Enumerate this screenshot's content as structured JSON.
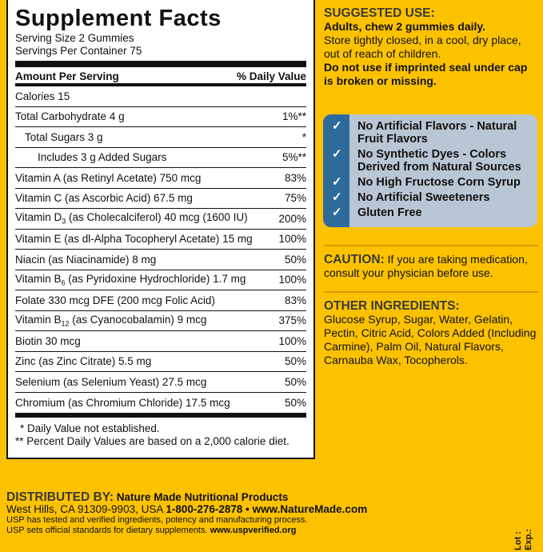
{
  "facts": {
    "title": "Supplement Facts",
    "serving_size": "Serving Size 2 Gummies",
    "servings_per_container": "Servings Per Container 75",
    "header_amount": "Amount Per Serving",
    "header_dv": "% Daily Value",
    "rows": [
      {
        "name": "Calories  15",
        "dv": ""
      },
      {
        "name": "Total Carbohydrate  4 g",
        "dv": "1%**"
      },
      {
        "name": "Total Sugars  3 g",
        "dv": "*"
      },
      {
        "name": "Includes 3 g Added Sugars",
        "dv": "5%**"
      },
      {
        "name": "Vitamin A (as Retinyl Acetate)  750 mcg",
        "dv": "83%"
      },
      {
        "name": "Vitamin C (as Ascorbic Acid)  67.5 mg",
        "dv": "75%"
      },
      {
        "name": "Vitamin D",
        "sub": "3",
        "rest": " (as Cholecalciferol)  40 mcg (1600 IU)",
        "dv": "200%"
      },
      {
        "name": "Vitamin E (as dl-Alpha Tocopheryl Acetate)  15 mg",
        "dv": "100%"
      },
      {
        "name": "Niacin (as Niacinamide)  8 mg",
        "dv": "50%"
      },
      {
        "name": "Vitamin B",
        "sub": "6",
        "rest": " (as Pyridoxine Hydrochloride)  1.7 mg",
        "dv": "100%"
      },
      {
        "name": "Folate  330 mcg DFE (200 mcg Folic Acid)",
        "dv": "83%"
      },
      {
        "name": "Vitamin B",
        "sub": "12",
        "rest": " (as Cyanocobalamin)  9 mcg",
        "dv": "375%"
      },
      {
        "name": "Biotin  30 mcg",
        "dv": "100%"
      },
      {
        "name": "Zinc (as Zinc Citrate)  5.5 mg",
        "dv": "50%"
      },
      {
        "name": "Selenium (as Selenium Yeast)  27.5 mcg",
        "dv": "50%"
      },
      {
        "name": "Chromium (as Chromium Chloride)  17.5 mcg",
        "dv": "50%"
      }
    ],
    "footnote1": "* Daily Value not established.",
    "footnote2": "** Percent Daily Values are based on a 2,000 calorie diet."
  },
  "suggested": {
    "heading": "SUGGESTED USE:",
    "line1": "Adults, chew 2 gummies daily.",
    "line2": "Store tightly closed, in a cool, dry place, out of reach of children.",
    "line3": "Do not use if imprinted seal under cap is broken or missing."
  },
  "claims": [
    "No Artificial Flavors - Natural Fruit Flavors",
    "No Synthetic Dyes - Colors Derived from Natural Sources",
    "No High Fructose Corn Syrup",
    "No Artificial Sweeteners",
    "Gluten Free"
  ],
  "claim_icon": "checkmark-icon",
  "caution": {
    "label": "CAUTION:",
    "text": " If you are taking medication, consult your physician before use."
  },
  "ingredients": {
    "heading": "OTHER INGREDIENTS:",
    "text": "Glucose Syrup, Sugar, Water, Gelatin, Pectin, Citric Acid, Colors Added (Including Carmine), Palm Oil, Natural Flavors, Carnauba Wax, Tocopherols."
  },
  "distributor": {
    "label": "DISTRIBUTED BY:",
    "name": " Nature Made Nutritional Products",
    "address": "West Hills, CA 91309-9903, USA ",
    "contact": "1-800-276-2878 • www.NatureMade.com",
    "usp1": "USP has tested and verified ingredients, potency and manufacturing process.",
    "usp2": "USP sets official standards for dietary supplements. ",
    "usp_url": "www.uspverified.org"
  },
  "lot": "Lot :",
  "exp": "Exp.:",
  "colors": {
    "background": "#fcc200",
    "claim_box": "#b9c6d3",
    "claim_side": "#2e6b9a"
  }
}
